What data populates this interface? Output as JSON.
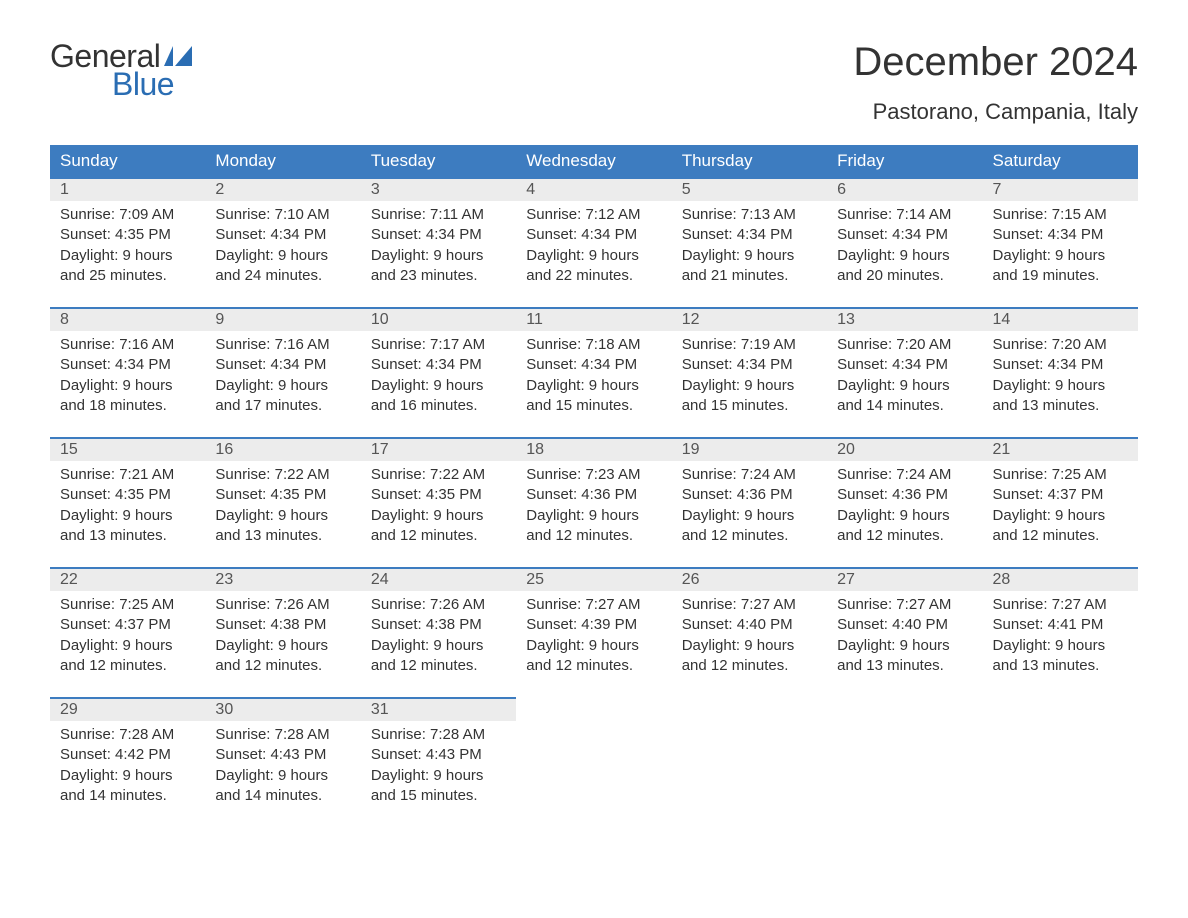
{
  "logo": {
    "word1": "General",
    "word2": "Blue",
    "word1_color": "#333333",
    "word2_color": "#2a6db3",
    "flag_color": "#2a6db3"
  },
  "title": "December 2024",
  "location": "Pastorano, Campania, Italy",
  "colors": {
    "header_bg": "#3d7cc0",
    "header_text": "#ffffff",
    "daynum_bg": "#ececec",
    "daynum_border": "#3d7cc0",
    "body_bg": "#ffffff",
    "text": "#333333"
  },
  "day_headers": [
    "Sunday",
    "Monday",
    "Tuesday",
    "Wednesday",
    "Thursday",
    "Friday",
    "Saturday"
  ],
  "weeks": [
    [
      {
        "n": "1",
        "sunrise": "7:09 AM",
        "sunset": "4:35 PM",
        "dh": "9",
        "dm": "25"
      },
      {
        "n": "2",
        "sunrise": "7:10 AM",
        "sunset": "4:34 PM",
        "dh": "9",
        "dm": "24"
      },
      {
        "n": "3",
        "sunrise": "7:11 AM",
        "sunset": "4:34 PM",
        "dh": "9",
        "dm": "23"
      },
      {
        "n": "4",
        "sunrise": "7:12 AM",
        "sunset": "4:34 PM",
        "dh": "9",
        "dm": "22"
      },
      {
        "n": "5",
        "sunrise": "7:13 AM",
        "sunset": "4:34 PM",
        "dh": "9",
        "dm": "21"
      },
      {
        "n": "6",
        "sunrise": "7:14 AM",
        "sunset": "4:34 PM",
        "dh": "9",
        "dm": "20"
      },
      {
        "n": "7",
        "sunrise": "7:15 AM",
        "sunset": "4:34 PM",
        "dh": "9",
        "dm": "19"
      }
    ],
    [
      {
        "n": "8",
        "sunrise": "7:16 AM",
        "sunset": "4:34 PM",
        "dh": "9",
        "dm": "18"
      },
      {
        "n": "9",
        "sunrise": "7:16 AM",
        "sunset": "4:34 PM",
        "dh": "9",
        "dm": "17"
      },
      {
        "n": "10",
        "sunrise": "7:17 AM",
        "sunset": "4:34 PM",
        "dh": "9",
        "dm": "16"
      },
      {
        "n": "11",
        "sunrise": "7:18 AM",
        "sunset": "4:34 PM",
        "dh": "9",
        "dm": "15"
      },
      {
        "n": "12",
        "sunrise": "7:19 AM",
        "sunset": "4:34 PM",
        "dh": "9",
        "dm": "15"
      },
      {
        "n": "13",
        "sunrise": "7:20 AM",
        "sunset": "4:34 PM",
        "dh": "9",
        "dm": "14"
      },
      {
        "n": "14",
        "sunrise": "7:20 AM",
        "sunset": "4:34 PM",
        "dh": "9",
        "dm": "13"
      }
    ],
    [
      {
        "n": "15",
        "sunrise": "7:21 AM",
        "sunset": "4:35 PM",
        "dh": "9",
        "dm": "13"
      },
      {
        "n": "16",
        "sunrise": "7:22 AM",
        "sunset": "4:35 PM",
        "dh": "9",
        "dm": "13"
      },
      {
        "n": "17",
        "sunrise": "7:22 AM",
        "sunset": "4:35 PM",
        "dh": "9",
        "dm": "12"
      },
      {
        "n": "18",
        "sunrise": "7:23 AM",
        "sunset": "4:36 PM",
        "dh": "9",
        "dm": "12"
      },
      {
        "n": "19",
        "sunrise": "7:24 AM",
        "sunset": "4:36 PM",
        "dh": "9",
        "dm": "12"
      },
      {
        "n": "20",
        "sunrise": "7:24 AM",
        "sunset": "4:36 PM",
        "dh": "9",
        "dm": "12"
      },
      {
        "n": "21",
        "sunrise": "7:25 AM",
        "sunset": "4:37 PM",
        "dh": "9",
        "dm": "12"
      }
    ],
    [
      {
        "n": "22",
        "sunrise": "7:25 AM",
        "sunset": "4:37 PM",
        "dh": "9",
        "dm": "12"
      },
      {
        "n": "23",
        "sunrise": "7:26 AM",
        "sunset": "4:38 PM",
        "dh": "9",
        "dm": "12"
      },
      {
        "n": "24",
        "sunrise": "7:26 AM",
        "sunset": "4:38 PM",
        "dh": "9",
        "dm": "12"
      },
      {
        "n": "25",
        "sunrise": "7:27 AM",
        "sunset": "4:39 PM",
        "dh": "9",
        "dm": "12"
      },
      {
        "n": "26",
        "sunrise": "7:27 AM",
        "sunset": "4:40 PM",
        "dh": "9",
        "dm": "12"
      },
      {
        "n": "27",
        "sunrise": "7:27 AM",
        "sunset": "4:40 PM",
        "dh": "9",
        "dm": "13"
      },
      {
        "n": "28",
        "sunrise": "7:27 AM",
        "sunset": "4:41 PM",
        "dh": "9",
        "dm": "13"
      }
    ],
    [
      {
        "n": "29",
        "sunrise": "7:28 AM",
        "sunset": "4:42 PM",
        "dh": "9",
        "dm": "14"
      },
      {
        "n": "30",
        "sunrise": "7:28 AM",
        "sunset": "4:43 PM",
        "dh": "9",
        "dm": "14"
      },
      {
        "n": "31",
        "sunrise": "7:28 AM",
        "sunset": "4:43 PM",
        "dh": "9",
        "dm": "15"
      },
      null,
      null,
      null,
      null
    ]
  ],
  "label_sunrise": "Sunrise: ",
  "label_sunset": "Sunset: ",
  "label_daylight_prefix": "Daylight: ",
  "label_hours": " hours",
  "label_and": "and ",
  "label_minutes": " minutes."
}
